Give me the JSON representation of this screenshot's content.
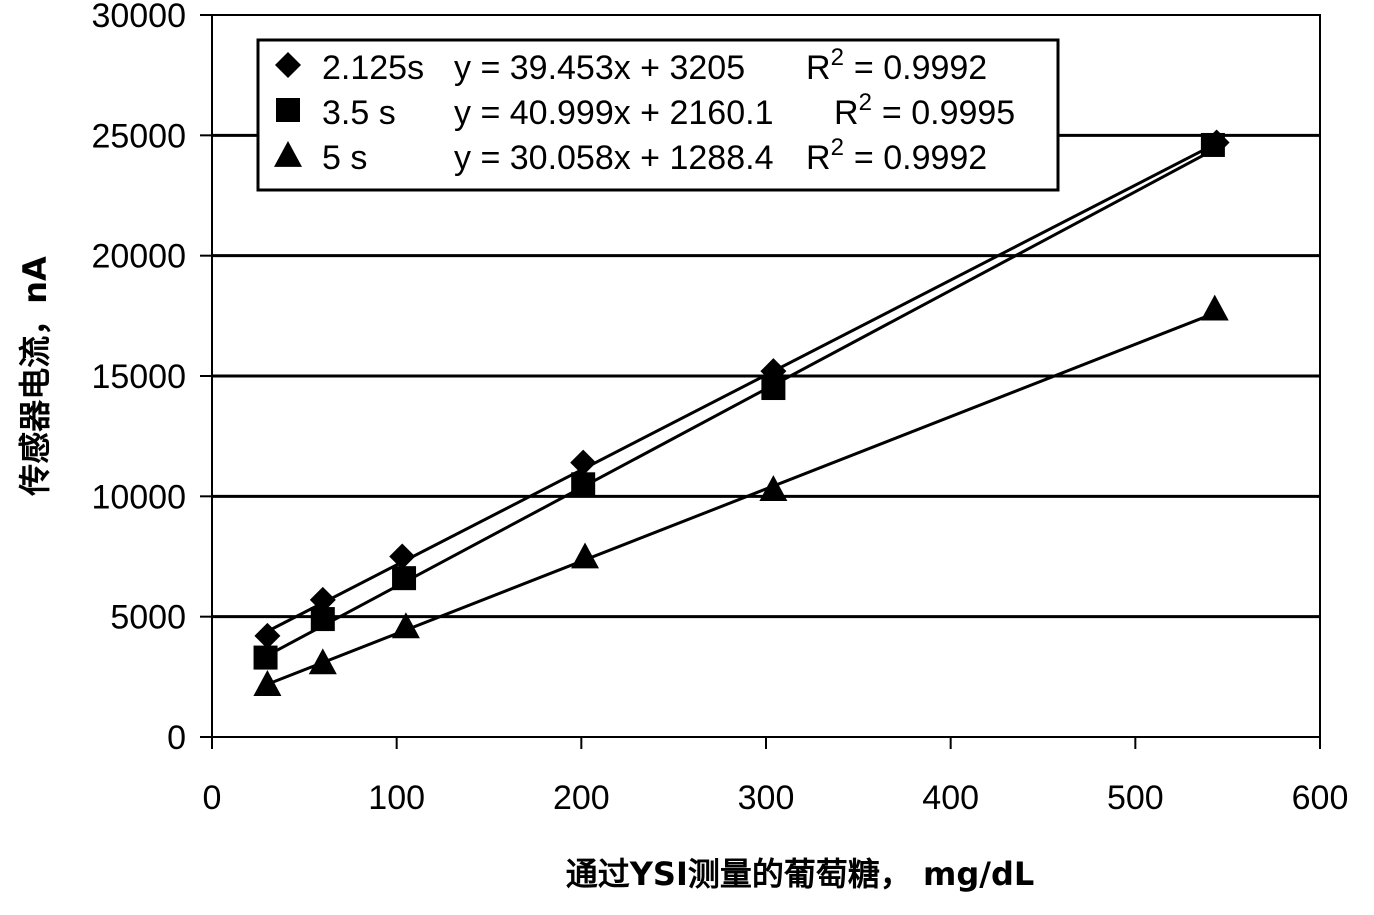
{
  "chart_data": {
    "type": "scatter",
    "xlabel": "通过YSI测量的葡萄糖， mg/dL",
    "ylabel": "传感器电流，nA",
    "xlim": [
      0,
      600
    ],
    "ylim": [
      0,
      30000
    ],
    "x_ticks": [
      "0",
      "100",
      "200",
      "300",
      "400",
      "500",
      "600"
    ],
    "y_ticks": [
      "0",
      "5000",
      "10000",
      "15000",
      "20000",
      "25000",
      "30000"
    ],
    "grid": "horizontal",
    "legend_position": "top-left",
    "series": [
      {
        "name": "2.125s",
        "marker": "diamond",
        "equation": "y = 39.453x + 3205",
        "r2_value": "= 0.9992",
        "x": [
          30,
          60,
          103,
          201,
          304,
          544
        ],
        "y": [
          4200,
          5700,
          7500,
          11400,
          15200,
          24700
        ],
        "fit": {
          "slope": 39.453,
          "intercept": 3205
        }
      },
      {
        "name": "3.5 s",
        "marker": "square",
        "equation": "y = 40.999x + 2160.1",
        "r2_value": "= 0.9995",
        "x": [
          29,
          60,
          104,
          201,
          304,
          542
        ],
        "y": [
          3300,
          4900,
          6600,
          10500,
          14500,
          24600
        ],
        "fit": {
          "slope": 40.999,
          "intercept": 2160.1
        }
      },
      {
        "name": "5 s",
        "marker": "triangle",
        "equation": "y = 30.058x + 1288.4",
        "r2_value": "= 0.9992",
        "x": [
          30,
          60,
          105,
          202,
          304,
          543
        ],
        "y": [
          2200,
          3100,
          4600,
          7500,
          10300,
          17800
        ],
        "fit": {
          "slope": 30.058,
          "intercept": 1288.4
        }
      }
    ],
    "r2_label": "R",
    "r2_superscript": "2"
  }
}
